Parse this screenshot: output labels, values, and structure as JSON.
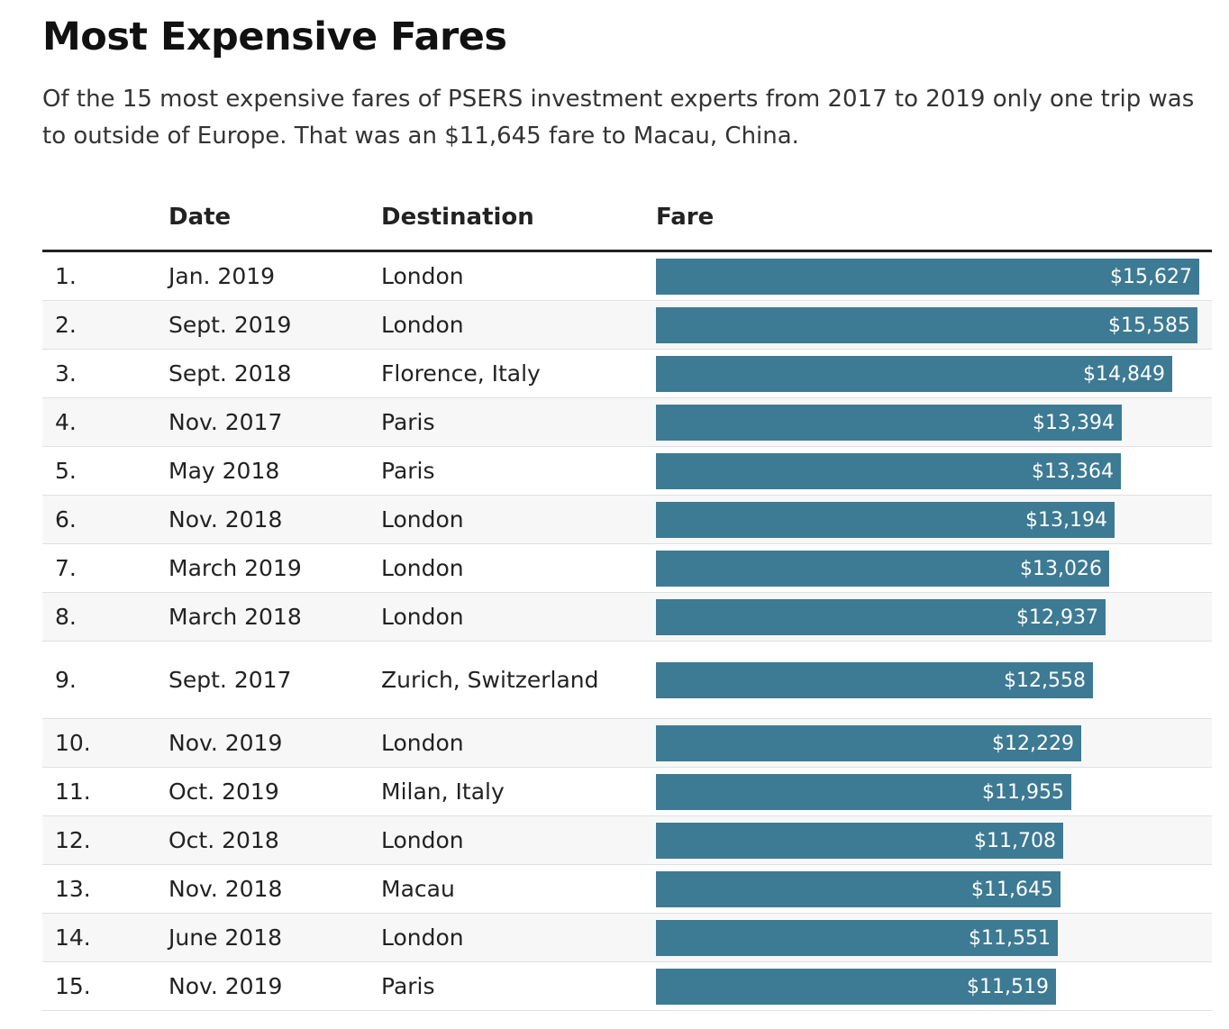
{
  "title": "Most Expensive Fares",
  "subtitle": "Of the 15 most expensive fares of PSERS investment experts from 2017 to 2019 only one trip was to outside of Europe. That was an $11,645 fare to Macau, China.",
  "columns": {
    "date": "Date",
    "destination": "Destination",
    "fare": "Fare"
  },
  "colors": {
    "bar": "#3d7a93",
    "bar_text": "#ffffff",
    "row_alt": "#f7f7f7"
  },
  "rows": [
    {
      "rank": "1.",
      "date": "Jan. 2019",
      "destination": "London",
      "fare": 15627,
      "fare_label": "$15,627"
    },
    {
      "rank": "2.",
      "date": "Sept. 2019",
      "destination": "London",
      "fare": 15585,
      "fare_label": "$15,585"
    },
    {
      "rank": "3.",
      "date": "Sept. 2018",
      "destination": "Florence, Italy",
      "fare": 14849,
      "fare_label": "$14,849"
    },
    {
      "rank": "4.",
      "date": "Nov. 2017",
      "destination": "Paris",
      "fare": 13394,
      "fare_label": "$13,394"
    },
    {
      "rank": "5.",
      "date": "May 2018",
      "destination": "Paris",
      "fare": 13364,
      "fare_label": "$13,364"
    },
    {
      "rank": "6.",
      "date": "Nov. 2018",
      "destination": "London",
      "fare": 13194,
      "fare_label": "$13,194"
    },
    {
      "rank": "7.",
      "date": "March 2019",
      "destination": "London",
      "fare": 13026,
      "fare_label": "$13,026"
    },
    {
      "rank": "8.",
      "date": "March 2018",
      "destination": "London",
      "fare": 12937,
      "fare_label": "$12,937"
    },
    {
      "rank": "9.",
      "date": "Sept. 2017",
      "destination": "Zurich, Switzerland",
      "fare": 12558,
      "fare_label": "$12,558"
    },
    {
      "rank": "10.",
      "date": "Nov. 2019",
      "destination": "London",
      "fare": 12229,
      "fare_label": "$12,229"
    },
    {
      "rank": "11.",
      "date": "Oct. 2019",
      "destination": "Milan, Italy",
      "fare": 11955,
      "fare_label": "$11,955"
    },
    {
      "rank": "12.",
      "date": "Oct. 2018",
      "destination": "London",
      "fare": 11708,
      "fare_label": "$11,708"
    },
    {
      "rank": "13.",
      "date": "Nov. 2018",
      "destination": "Macau",
      "fare": 11645,
      "fare_label": "$11,645"
    },
    {
      "rank": "14.",
      "date": "June 2018",
      "destination": "London",
      "fare": 11551,
      "fare_label": "$11,551"
    },
    {
      "rank": "15.",
      "date": "Nov. 2019",
      "destination": "Paris",
      "fare": 11519,
      "fare_label": "$11,519"
    }
  ],
  "chart_data": {
    "type": "bar",
    "categories": [
      "1.",
      "2.",
      "3.",
      "4.",
      "5.",
      "6.",
      "7.",
      "8.",
      "9.",
      "10.",
      "11.",
      "12.",
      "13.",
      "14.",
      "15."
    ],
    "values": [
      15627,
      15585,
      14849,
      13394,
      13364,
      13194,
      13026,
      12937,
      12558,
      12229,
      11955,
      11708,
      11645,
      11551,
      11519
    ],
    "title": "Most Expensive Fares",
    "xlabel": "",
    "ylabel": "Fare",
    "ylim": [
      0,
      15627
    ]
  }
}
